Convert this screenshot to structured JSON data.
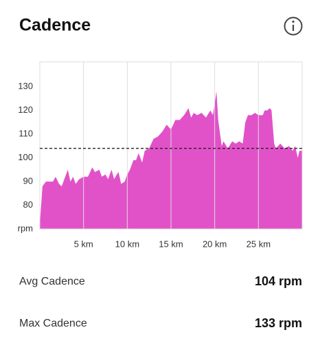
{
  "chart_data": {
    "type": "area",
    "title": "Cadence",
    "x": [
      0,
      0.3,
      0.7,
      1.5,
      1.8,
      2.2,
      2.5,
      3,
      3.2,
      3.5,
      3.8,
      4.1,
      4.5,
      5,
      5.5,
      6,
      6.3,
      6.8,
      7.1,
      7.5,
      7.8,
      8.2,
      8.5,
      8.8,
      9,
      9.3,
      9.7,
      10,
      10.3,
      10.7,
      11,
      11.3,
      11.7,
      12,
      12.5,
      13,
      13.5,
      14,
      14.5,
      15,
      15.5,
      16,
      16.5,
      17,
      17.3,
      17.6,
      18,
      18.5,
      19,
      19.5,
      19.8,
      20.2,
      20.4,
      20.8,
      21,
      21.5,
      22,
      22.4,
      22.8,
      23.2,
      23.5,
      23.8,
      24.2,
      24.6,
      25,
      25.5,
      25.7,
      26,
      26.3,
      26.5,
      26.8,
      27,
      27.5,
      28,
      28.5,
      28.9,
      29.2,
      29.5,
      29.7,
      30
    ],
    "series": [
      {
        "color": "#e152c9",
        "values": [
          72,
          88,
          90,
          90,
          92,
          89,
          88,
          93,
          95,
          90,
          92,
          89,
          91,
          92,
          92,
          96,
          94,
          95,
          92,
          93,
          91,
          95,
          91,
          93,
          94,
          89,
          90,
          93,
          95,
          99,
          99,
          102,
          98,
          103,
          104,
          108,
          109,
          111,
          114,
          112,
          116,
          116,
          118,
          121,
          117,
          119,
          118,
          119,
          117,
          120,
          118,
          128,
          116,
          105,
          107,
          104,
          107,
          106,
          107,
          106,
          115,
          118,
          118,
          119,
          118,
          118,
          120,
          120,
          121,
          120,
          106,
          104,
          106,
          104,
          105,
          103,
          105,
          100,
          103,
          103
        ]
      }
    ],
    "reference_line": 104,
    "xlim": [
      0,
      30
    ],
    "xticks": [
      {
        "value": 5,
        "label": "5 km"
      },
      {
        "value": 10,
        "label": "10 km"
      },
      {
        "value": 15,
        "label": "15 km"
      },
      {
        "value": 20,
        "label": "20 km"
      },
      {
        "value": 25,
        "label": "25 km"
      }
    ],
    "ylim": [
      70,
      140.5
    ],
    "yticks": [
      {
        "value": 70,
        "label": "rpm"
      },
      80,
      90,
      100,
      110,
      120,
      130
    ],
    "grid": "x"
  },
  "stats": [
    {
      "label": "Avg Cadence",
      "value": "104 rpm"
    },
    {
      "label": "Max Cadence",
      "value": "133 rpm"
    }
  ]
}
